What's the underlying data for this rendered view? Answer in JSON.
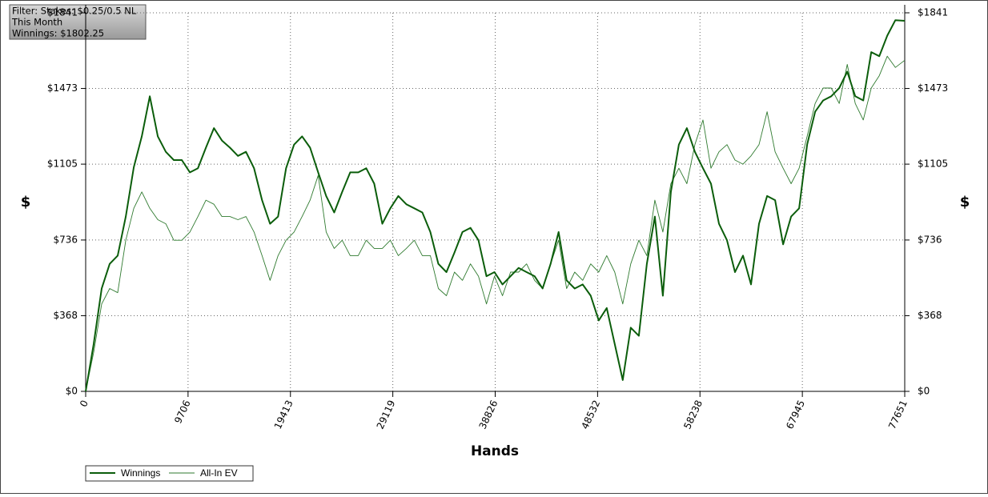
{
  "chart_data": {
    "type": "line",
    "annotations": [
      "Filter: Stakes: $0.25/0.5 NL",
      "This Month",
      "Winnings: $1802.25"
    ],
    "xlabel": "Hands",
    "ylabel": "$",
    "x": [
      0,
      760,
      1520,
      2280,
      3040,
      3800,
      4560,
      5320,
      6080,
      6840,
      7600,
      8360,
      9120,
      9880,
      10640,
      11400,
      12160,
      12920,
      13680,
      14440,
      15200,
      15960,
      16720,
      17480,
      18240,
      19000,
      19760,
      20520,
      21280,
      22040,
      22800,
      23560,
      24320,
      25080,
      25840,
      26600,
      27360,
      28120,
      28880,
      29640,
      30400,
      31160,
      31920,
      32680,
      33440,
      34200,
      34960,
      35720,
      36480,
      37240,
      38000,
      38760,
      39520,
      40280,
      41040,
      41800,
      42560,
      43320,
      44080,
      44840,
      45600,
      46360,
      47120,
      47880,
      48640,
      49400,
      50160,
      50920,
      51680,
      52440,
      53200,
      53960,
      54720,
      55480,
      56240,
      57000,
      57760,
      58520,
      59280,
      60040,
      60800,
      61560,
      62320,
      63080,
      63840,
      64600,
      65360,
      66120,
      66880,
      67640,
      68400,
      69160,
      69920,
      70680,
      71440,
      72200,
      72960,
      73720,
      74480,
      75240,
      76000,
      76760,
      77651
    ],
    "series": [
      {
        "name": "Winnings",
        "color": "#0b5d0b",
        "width": 2,
        "values": [
          0,
          230,
          500,
          620,
          660,
          850,
          1090,
          1240,
          1435,
          1240,
          1165,
          1125,
          1125,
          1065,
          1085,
          1185,
          1280,
          1220,
          1185,
          1145,
          1165,
          1085,
          930,
          815,
          850,
          1085,
          1200,
          1240,
          1185,
          1065,
          950,
          870,
          970,
          1065,
          1065,
          1085,
          1010,
          815,
          890,
          950,
          910,
          890,
          870,
          775,
          620,
          580,
          675,
          775,
          795,
          735,
          560,
          580,
          520,
          560,
          600,
          580,
          560,
          500,
          620,
          775,
          540,
          500,
          520,
          465,
          345,
          405,
          230,
          55,
          310,
          270,
          620,
          850,
          465,
          970,
          1200,
          1280,
          1165,
          1085,
          1010,
          815,
          735,
          580,
          660,
          520,
          815,
          950,
          930,
          715,
          850,
          890,
          1200,
          1360,
          1415,
          1435,
          1475,
          1555,
          1435,
          1415,
          1650,
          1630,
          1730,
          1805,
          1802
        ]
      },
      {
        "name": "All-In EV",
        "color": "#2f7a2f",
        "width": 0.9,
        "values": [
          0,
          190,
          425,
          500,
          480,
          735,
          890,
          970,
          890,
          835,
          815,
          735,
          735,
          775,
          850,
          930,
          910,
          850,
          850,
          835,
          850,
          775,
          660,
          540,
          660,
          735,
          775,
          850,
          930,
          1050,
          775,
          695,
          735,
          660,
          660,
          735,
          695,
          695,
          735,
          660,
          695,
          735,
          660,
          660,
          500,
          465,
          580,
          540,
          620,
          560,
          425,
          560,
          465,
          580,
          580,
          620,
          540,
          500,
          620,
          735,
          500,
          580,
          540,
          620,
          580,
          660,
          580,
          425,
          620,
          735,
          660,
          930,
          775,
          1010,
          1085,
          1010,
          1200,
          1320,
          1085,
          1165,
          1200,
          1125,
          1105,
          1145,
          1200,
          1360,
          1165,
          1085,
          1010,
          1085,
          1240,
          1400,
          1475,
          1475,
          1400,
          1590,
          1400,
          1320,
          1475,
          1535,
          1630,
          1575,
          1610
        ]
      }
    ],
    "xlim": [
      0,
      77651
    ],
    "xticks": [
      0,
      9706,
      19413,
      29119,
      38826,
      48532,
      58238,
      67945,
      77651
    ],
    "ylim": [
      0,
      1841
    ],
    "yticks": [
      {
        "value": 0,
        "label": "$0"
      },
      {
        "value": 368,
        "label": "$368"
      },
      {
        "value": 736,
        "label": "$736"
      },
      {
        "value": 1105,
        "label": "$1105"
      },
      {
        "value": 1473,
        "label": "$1473"
      },
      {
        "value": 1841,
        "label": "$1841"
      }
    ],
    "grid": true
  }
}
